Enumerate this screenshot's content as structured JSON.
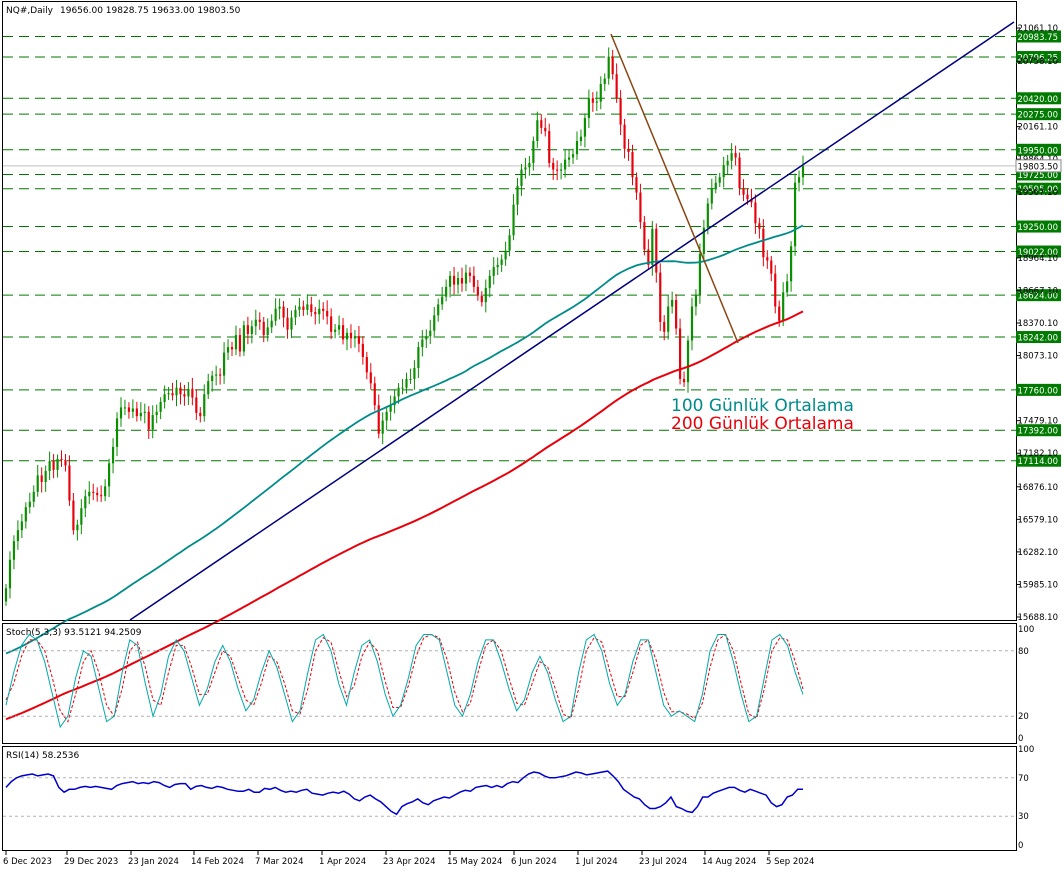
{
  "header": {
    "symbol": "NQ#,Daily",
    "ohlc": "19656.00 19828.75 19633.00 19803.50"
  },
  "colors": {
    "bull": "#0a8f00",
    "bear": "#e8000b",
    "ma100": "#008b8b",
    "ma200": "#e8000b",
    "trend": "#00007f",
    "downtrend": "#8b4513",
    "level": "#007a00",
    "stoch_main": "#00aaaa",
    "stoch_signal": "#e8000b",
    "rsi": "#0000cc"
  },
  "chart_data": [
    {
      "type": "candlestick",
      "title": "NQ#,Daily",
      "ohlc_last": {
        "open": 19656.0,
        "high": 19828.75,
        "low": 19633.0,
        "close": 19803.5
      },
      "current_price": 19803.5,
      "y_ticks": [
        21061.1,
        20758.1,
        20161.1,
        19864.1,
        19567.1,
        18964.1,
        18667.1,
        18370.1,
        18073.1,
        17479.1,
        17182.1,
        16876.1,
        16579.1,
        16282.1,
        15985.1,
        15688.1
      ],
      "horizontal_levels": [
        20983.75,
        20796.25,
        20420.0,
        20275.0,
        19950.0,
        19725.0,
        19595.0,
        19250.0,
        19022.0,
        18624.0,
        18242.0,
        17760.0,
        17392.0,
        17114.0
      ],
      "x_labels": [
        "6 Dec 2023",
        "29 Dec 2023",
        "23 Jan 2024",
        "14 Feb 2024",
        "7 Mar 2024",
        "1 Apr 2024",
        "23 Apr 2024",
        "15 May 2024",
        "6 Jun 2024",
        "1 Jul 2024",
        "23 Jul 2024",
        "14 Aug 2024",
        "5 Sep 2024"
      ],
      "closes": [
        15950,
        16210,
        16380,
        16480,
        16560,
        16690,
        16740,
        16830,
        16980,
        16920,
        17020,
        17110,
        17030,
        17130,
        17120,
        17070,
        16750,
        16480,
        16530,
        16680,
        16790,
        16830,
        16820,
        16800,
        16790,
        16880,
        17090,
        17240,
        17500,
        17600,
        17600,
        17560,
        17590,
        17520,
        17550,
        17560,
        17400,
        17530,
        17560,
        17650,
        17720,
        17730,
        17710,
        17780,
        17720,
        17700,
        17770,
        17690,
        17550,
        17520,
        17720,
        17840,
        17890,
        17900,
        17890,
        18100,
        18150,
        18130,
        18260,
        18110,
        18350,
        18270,
        18340,
        18400,
        18380,
        18260,
        18330,
        18390,
        18500,
        18520,
        18420,
        18310,
        18420,
        18490,
        18520,
        18490,
        18540,
        18470,
        18450,
        18500,
        18480,
        18430,
        18290,
        18310,
        18350,
        18220,
        18280,
        18230,
        18250,
        18180,
        18060,
        17920,
        17820,
        17620,
        17360,
        17480,
        17560,
        17620,
        17700,
        17780,
        17780,
        17860,
        17860,
        17960,
        18150,
        18220,
        18250,
        18300,
        18440,
        18540,
        18610,
        18700,
        18800,
        18720,
        18780,
        18730,
        18830,
        18800,
        18700,
        18620,
        18560,
        18690,
        18800,
        18880,
        18900,
        18950,
        19030,
        19170,
        19450,
        19620,
        19770,
        19790,
        19830,
        20030,
        20220,
        20150,
        20120,
        19830,
        19770,
        19760,
        19770,
        19860,
        19880,
        19910,
        20030,
        20070,
        20240,
        20420,
        20380,
        20390,
        20550,
        20600,
        20800,
        20640,
        20420,
        20180,
        19960,
        19930,
        19700,
        19560,
        19290,
        19040,
        18900,
        19230,
        18830,
        18380,
        18290,
        18520,
        18580,
        18320,
        17860,
        17830,
        18210,
        18520,
        18620,
        19000,
        19240,
        19460,
        19600,
        19650,
        19700,
        19810,
        19850,
        19920,
        19880,
        19600,
        19540,
        19500,
        19470,
        19280,
        19230,
        18970,
        18940,
        18820,
        18520,
        18390,
        18650,
        18750,
        19070,
        19650,
        19700,
        19800
      ]
    },
    {
      "type": "line",
      "title": "Stoch(5,3,3) 93.5121 94.2509",
      "y_ticks": [
        100,
        80,
        20,
        0
      ],
      "series": [
        {
          "values": [
            30,
            60,
            85,
            95,
            90,
            70,
            40,
            10,
            20,
            55,
            80,
            75,
            45,
            15,
            20,
            60,
            90,
            85,
            50,
            20,
            40,
            75,
            90,
            80,
            55,
            30,
            45,
            70,
            85,
            70,
            45,
            25,
            35,
            60,
            80,
            65,
            40,
            15,
            25,
            60,
            90,
            95,
            80,
            50,
            30,
            60,
            85,
            90,
            70,
            40,
            20,
            30,
            55,
            85,
            95,
            95,
            90,
            60,
            30,
            20,
            40,
            70,
            90,
            90,
            70,
            45,
            25,
            35,
            60,
            75,
            60,
            35,
            15,
            20,
            60,
            90,
            95,
            80,
            50,
            30,
            40,
            70,
            90,
            90,
            60,
            30,
            20,
            25,
            20,
            15,
            40,
            80,
            95,
            95,
            70,
            40,
            15,
            20,
            55,
            90,
            95,
            85,
            60,
            40
          ]
        },
        {
          "values": [
            35,
            50,
            75,
            90,
            90,
            80,
            55,
            25,
            15,
            40,
            70,
            80,
            60,
            30,
            20,
            45,
            80,
            88,
            65,
            35,
            30,
            60,
            85,
            85,
            65,
            40,
            40,
            60,
            80,
            75,
            55,
            35,
            30,
            50,
            75,
            70,
            50,
            25,
            22,
            45,
            80,
            92,
            88,
            62,
            38,
            48,
            75,
            88,
            80,
            52,
            28,
            28,
            48,
            75,
            92,
            95,
            92,
            72,
            42,
            24,
            32,
            60,
            85,
            90,
            80,
            55,
            32,
            30,
            50,
            70,
            65,
            45,
            22,
            18,
            45,
            80,
            92,
            88,
            62,
            38,
            38,
            60,
            85,
            90,
            72,
            42,
            24,
            24,
            22,
            18,
            32,
            65,
            90,
            95,
            80,
            50,
            22,
            18,
            45,
            80,
            92,
            90,
            70,
            45
          ]
        }
      ]
    },
    {
      "type": "line",
      "title": "RSI(14) 58.2536",
      "y_ticks": [
        100,
        70,
        30,
        0
      ],
      "series": [
        {
          "values": [
            60,
            66,
            70,
            72,
            73,
            74,
            72,
            73,
            74,
            72,
            60,
            55,
            58,
            58,
            60,
            61,
            60,
            61,
            60,
            59,
            58,
            62,
            64,
            65,
            66,
            64,
            65,
            64,
            66,
            65,
            62,
            60,
            63,
            64,
            64,
            58,
            61,
            62,
            60,
            59,
            61,
            60,
            58,
            57,
            56,
            56,
            58,
            55,
            55,
            59,
            58,
            60,
            57,
            55,
            56,
            55,
            57,
            58,
            54,
            53,
            52,
            54,
            55,
            54,
            56,
            53,
            48,
            46,
            50,
            52,
            48,
            45,
            40,
            35,
            32,
            40,
            43,
            45,
            48,
            44,
            42,
            46,
            48,
            50,
            49,
            52,
            55,
            57,
            56,
            60,
            61,
            62,
            60,
            62,
            60,
            64,
            66,
            65,
            70,
            74,
            76,
            75,
            72,
            70,
            70,
            71,
            72,
            74,
            76,
            75,
            73,
            74,
            75,
            76,
            77,
            72,
            66,
            58,
            54,
            50,
            48,
            42,
            38,
            38,
            40,
            44,
            50,
            40,
            38,
            35,
            34,
            40,
            50,
            50,
            54,
            56,
            58,
            60,
            60,
            57,
            55,
            58,
            56,
            54,
            52,
            44,
            40,
            42,
            50,
            52,
            58,
            58
          ]
        }
      ]
    }
  ],
  "annotations": {
    "ma100_label": "100 Günlük Ortalama",
    "ma200_label": "200 Günlük Ortalama"
  }
}
